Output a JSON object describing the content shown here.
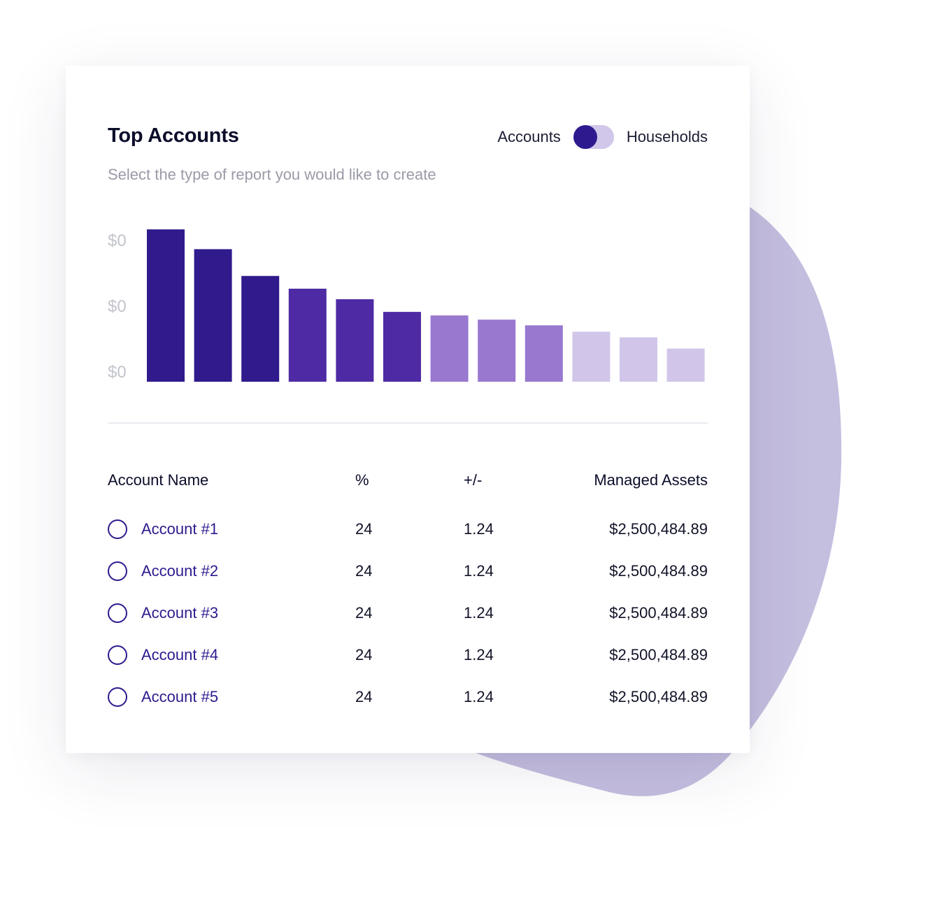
{
  "colors": {
    "accent": "#2e1a8e",
    "blob": "#c4bedf",
    "bar_dark": "#301a8c",
    "bar_mid": "#4e2ba4",
    "bar_light": "#9978d0",
    "bar_pale": "#d1c6e9"
  },
  "header": {
    "title": "Top Accounts",
    "subtitle": "Select the type of report you would like to create",
    "toggle": {
      "left_label": "Accounts",
      "right_label": "Households",
      "selected": "Accounts"
    }
  },
  "chart_data": {
    "type": "bar",
    "y_tick_labels": [
      "$0",
      "$0",
      "$0"
    ],
    "values": [
      216,
      188,
      150,
      132,
      117,
      99,
      94,
      88,
      80,
      71,
      63,
      47
    ],
    "shades": [
      "dark",
      "dark",
      "dark",
      "mid",
      "mid",
      "mid",
      "light",
      "light",
      "light",
      "pale",
      "pale",
      "pale"
    ],
    "ylim": [
      0,
      230
    ]
  },
  "table": {
    "headers": {
      "name": "Account Name",
      "pct": "%",
      "change": "+/-",
      "assets": "Managed Assets"
    },
    "rows": [
      {
        "name": "Account #1",
        "pct": "24",
        "change": "1.24",
        "assets": "$2,500,484.89"
      },
      {
        "name": "Account #2",
        "pct": "24",
        "change": "1.24",
        "assets": "$2,500,484.89"
      },
      {
        "name": "Account #3",
        "pct": "24",
        "change": "1.24",
        "assets": "$2,500,484.89"
      },
      {
        "name": "Account #4",
        "pct": "24",
        "change": "1.24",
        "assets": "$2,500,484.89"
      },
      {
        "name": "Account #5",
        "pct": "24",
        "change": "1.24",
        "assets": "$2,500,484.89"
      }
    ]
  }
}
